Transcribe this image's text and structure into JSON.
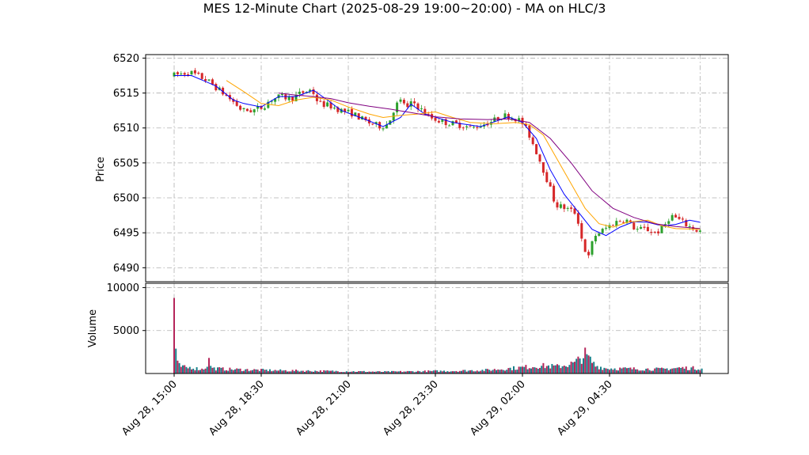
{
  "chart_data": {
    "type": "candlestick",
    "title": "MES 12-Minute Chart (2025-08-29 19:00~20:00) - MA on HLC/3",
    "price_panel": {
      "ylabel": "Price",
      "ylim": [
        6488,
        6520.5
      ],
      "yticks": [
        6490,
        6495,
        6500,
        6505,
        6510,
        6515,
        6520
      ],
      "grid": true
    },
    "volume_panel": {
      "ylabel": "Volume",
      "ylim": [
        0,
        10500
      ],
      "yticks": [
        5000,
        10000
      ],
      "grid": true
    },
    "x_axis": {
      "tick_labels": [
        "Aug 28, 15:00",
        "Aug 28, 18:30",
        "Aug 28, 21:00",
        "Aug 28, 23:30",
        "Aug 29, 02:00",
        "Aug 29, 04:30"
      ],
      "tick_label_rotation": 45
    },
    "colors": {
      "up": "#2ca02c",
      "down": "#d62728",
      "ma_fast": "#0000ff",
      "ma_mid": "#ffa500",
      "ma_slow": "#800080",
      "vol_a": "#17808a",
      "vol_b": "#b5255a"
    },
    "price_path": [
      [
        0,
        6517.5
      ],
      [
        5,
        6518.0
      ],
      [
        10,
        6516.8
      ],
      [
        12,
        6516.0
      ],
      [
        15,
        6514.8
      ],
      [
        18,
        6513.5
      ],
      [
        20,
        6512.5
      ],
      [
        23,
        6512.5
      ],
      [
        26,
        6513.0
      ],
      [
        28,
        6514.0
      ],
      [
        31,
        6514.5
      ],
      [
        34,
        6514.2
      ],
      [
        37,
        6515.0
      ],
      [
        40,
        6515.5
      ],
      [
        42,
        6513.5
      ],
      [
        45,
        6513.2
      ],
      [
        48,
        6512.6
      ],
      [
        52,
        6512.0
      ],
      [
        56,
        6510.8
      ],
      [
        60,
        6510.2
      ],
      [
        62,
        6510.6
      ],
      [
        64,
        6513.2
      ],
      [
        66,
        6514.0
      ],
      [
        67.5,
        6512.8
      ],
      [
        69,
        6513.8
      ],
      [
        71,
        6512.8
      ],
      [
        74,
        6511.5
      ],
      [
        78,
        6510.8
      ],
      [
        82,
        6510.5
      ],
      [
        86,
        6510.0
      ],
      [
        88,
        6510.3
      ],
      [
        92,
        6511.0
      ],
      [
        95,
        6511.8
      ],
      [
        98,
        6511.5
      ],
      [
        100,
        6511.0
      ],
      [
        102,
        6509.5
      ],
      [
        105,
        6506.0
      ],
      [
        108,
        6502.0
      ],
      [
        110,
        6499.0
      ],
      [
        113,
        6498.5
      ],
      [
        116,
        6497.8
      ],
      [
        118,
        6493.0
      ],
      [
        119.5,
        6491.5
      ],
      [
        121,
        6494.5
      ],
      [
        124,
        6495.5
      ],
      [
        127,
        6496.5
      ],
      [
        130,
        6497.0
      ],
      [
        133,
        6495.5
      ],
      [
        136,
        6495.5
      ],
      [
        139,
        6495.0
      ],
      [
        141,
        6495.8
      ],
      [
        143,
        6497.5
      ],
      [
        145,
        6497.0
      ],
      [
        148,
        6496.0
      ],
      [
        150,
        6495.5
      ],
      [
        151,
        6495.2
      ]
    ],
    "volume_profile": [
      [
        0,
        9300
      ],
      [
        0.3,
        4900
      ],
      [
        0.6,
        1500
      ],
      [
        1.2,
        950
      ],
      [
        2,
        800
      ],
      [
        3,
        700
      ],
      [
        4,
        650
      ],
      [
        5,
        750
      ],
      [
        6,
        600
      ],
      [
        7,
        550
      ],
      [
        8,
        500
      ],
      [
        9,
        700
      ],
      [
        10,
        1500
      ],
      [
        11,
        600
      ],
      [
        15,
        500
      ],
      [
        20,
        450
      ],
      [
        25,
        400
      ],
      [
        30,
        350
      ],
      [
        40,
        300
      ],
      [
        50,
        250
      ],
      [
        60,
        200
      ],
      [
        70,
        250
      ],
      [
        80,
        300
      ],
      [
        90,
        400
      ],
      [
        100,
        700
      ],
      [
        105,
        900
      ],
      [
        110,
        800
      ],
      [
        115,
        1200
      ],
      [
        118,
        2200
      ],
      [
        121,
        900
      ],
      [
        124,
        600
      ],
      [
        130,
        550
      ],
      [
        140,
        500
      ],
      [
        145,
        650
      ],
      [
        151,
        600
      ]
    ],
    "moving_averages": [
      {
        "key": "ma_fast",
        "path": [
          [
            0,
            6517.5
          ],
          [
            5,
            6517.5
          ],
          [
            12,
            6516.0
          ],
          [
            17,
            6514.0
          ],
          [
            20,
            6513.5
          ],
          [
            25,
            6513.0
          ],
          [
            30,
            6514.5
          ],
          [
            35,
            6514.5
          ],
          [
            40,
            6515.4
          ],
          [
            44,
            6514.0
          ],
          [
            48,
            6512.5
          ],
          [
            55,
            6511.2
          ],
          [
            60,
            6510.2
          ],
          [
            65,
            6511.5
          ],
          [
            68,
            6513.4
          ],
          [
            72,
            6512.0
          ],
          [
            80,
            6510.8
          ],
          [
            88,
            6510.2
          ],
          [
            92,
            6510.9
          ],
          [
            96,
            6511.6
          ],
          [
            100,
            6510.8
          ],
          [
            104,
            6508.5
          ],
          [
            108,
            6504.0
          ],
          [
            112,
            6500.5
          ],
          [
            116,
            6498.0
          ],
          [
            120,
            6495.5
          ],
          [
            124,
            6494.6
          ],
          [
            128,
            6495.8
          ],
          [
            132,
            6496.6
          ],
          [
            136,
            6496.5
          ],
          [
            140,
            6496.0
          ],
          [
            144,
            6496.2
          ],
          [
            148,
            6496.8
          ],
          [
            151,
            6496.5
          ]
        ]
      },
      {
        "key": "ma_mid",
        "path": [
          [
            15,
            6516.8
          ],
          [
            20,
            6515.2
          ],
          [
            25,
            6513.5
          ],
          [
            30,
            6513.2
          ],
          [
            35,
            6514.0
          ],
          [
            40,
            6514.4
          ],
          [
            45,
            6514.0
          ],
          [
            50,
            6513.0
          ],
          [
            56,
            6512.0
          ],
          [
            60,
            6511.5
          ],
          [
            65,
            6511.8
          ],
          [
            70,
            6512.0
          ],
          [
            75,
            6512.3
          ],
          [
            80,
            6511.5
          ],
          [
            85,
            6510.8
          ],
          [
            92,
            6510.6
          ],
          [
            98,
            6510.8
          ],
          [
            102,
            6510.5
          ],
          [
            106,
            6509.0
          ],
          [
            110,
            6505.5
          ],
          [
            114,
            6502.0
          ],
          [
            118,
            6498.5
          ],
          [
            122,
            6496.3
          ],
          [
            126,
            6495.8
          ],
          [
            130,
            6496.5
          ],
          [
            136,
            6496.8
          ],
          [
            140,
            6496.0
          ],
          [
            144,
            6495.6
          ],
          [
            151,
            6495.5
          ]
        ]
      },
      {
        "key": "ma_slow",
        "path": [
          [
            30,
            6515.0
          ],
          [
            35,
            6514.7
          ],
          [
            40,
            6514.5
          ],
          [
            45,
            6514.2
          ],
          [
            50,
            6513.6
          ],
          [
            56,
            6513.1
          ],
          [
            62,
            6512.7
          ],
          [
            68,
            6512.2
          ],
          [
            75,
            6511.6
          ],
          [
            82,
            6511.3
          ],
          [
            90,
            6511.2
          ],
          [
            96,
            6511.3
          ],
          [
            102,
            6510.8
          ],
          [
            108,
            6508.5
          ],
          [
            114,
            6505.0
          ],
          [
            120,
            6501.0
          ],
          [
            126,
            6498.5
          ],
          [
            132,
            6497.2
          ],
          [
            138,
            6496.3
          ],
          [
            144,
            6495.9
          ],
          [
            151,
            6495.6
          ]
        ]
      }
    ]
  }
}
